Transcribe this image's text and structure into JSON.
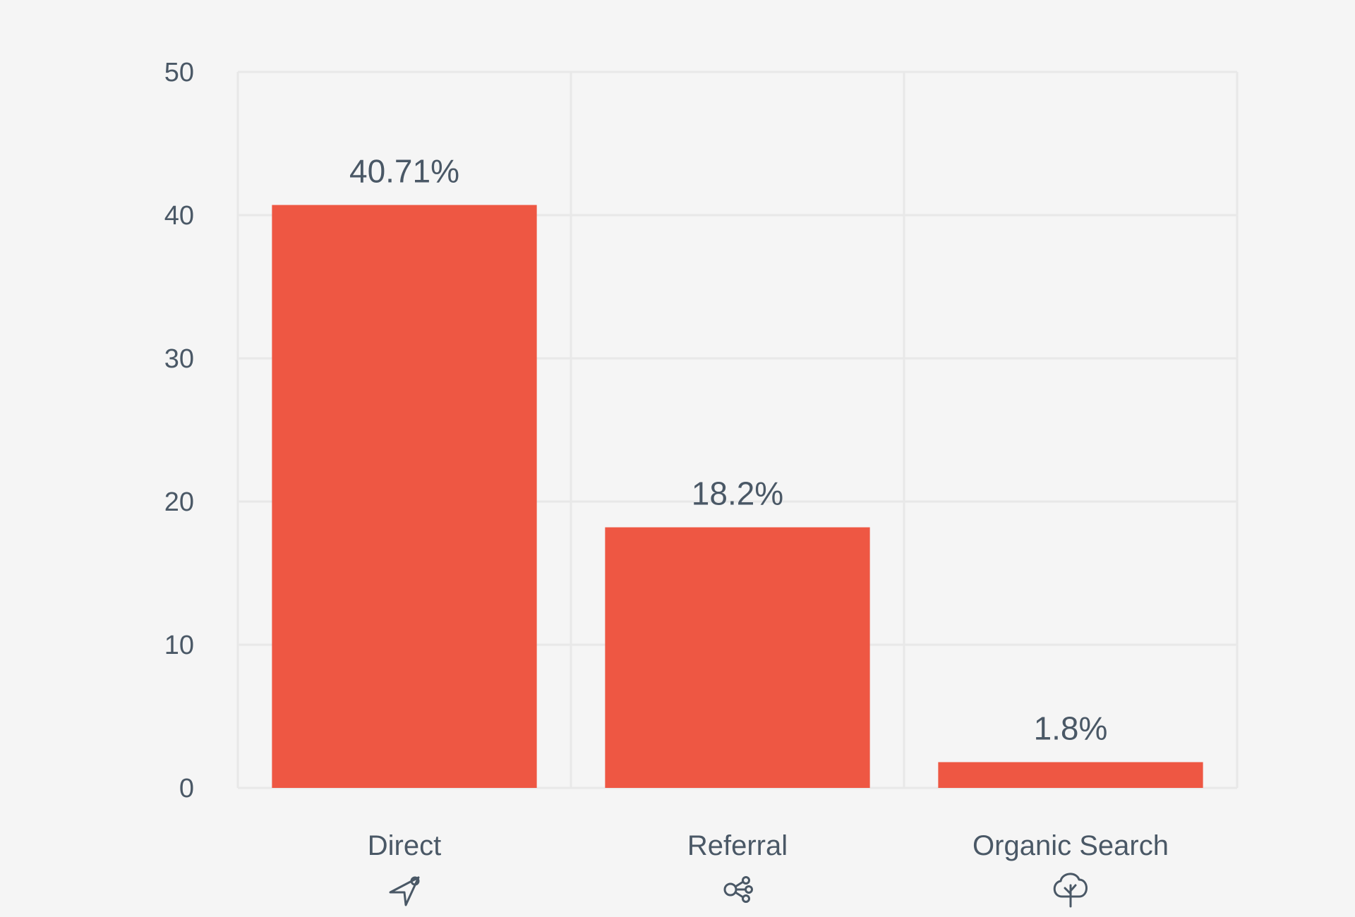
{
  "chart_data": {
    "type": "bar",
    "categories": [
      "Direct",
      "Referral",
      "Organic Search"
    ],
    "values": [
      40.71,
      18.2,
      1.8
    ],
    "data_labels": [
      "40.71%",
      "18.2%",
      "1.8%"
    ],
    "category_icons": [
      "send-icon",
      "share-icon",
      "tree-icon"
    ],
    "title": "",
    "xlabel": "",
    "ylabel": "",
    "ylim": [
      0,
      50
    ],
    "yticks": [
      "0",
      "10",
      "20",
      "30",
      "40",
      "50"
    ],
    "grid": true,
    "legend": "none",
    "colors": {
      "bar": "#ee5743",
      "grid": "#e8e8e8",
      "text": "#4a5866",
      "background": "#f5f5f5"
    }
  }
}
